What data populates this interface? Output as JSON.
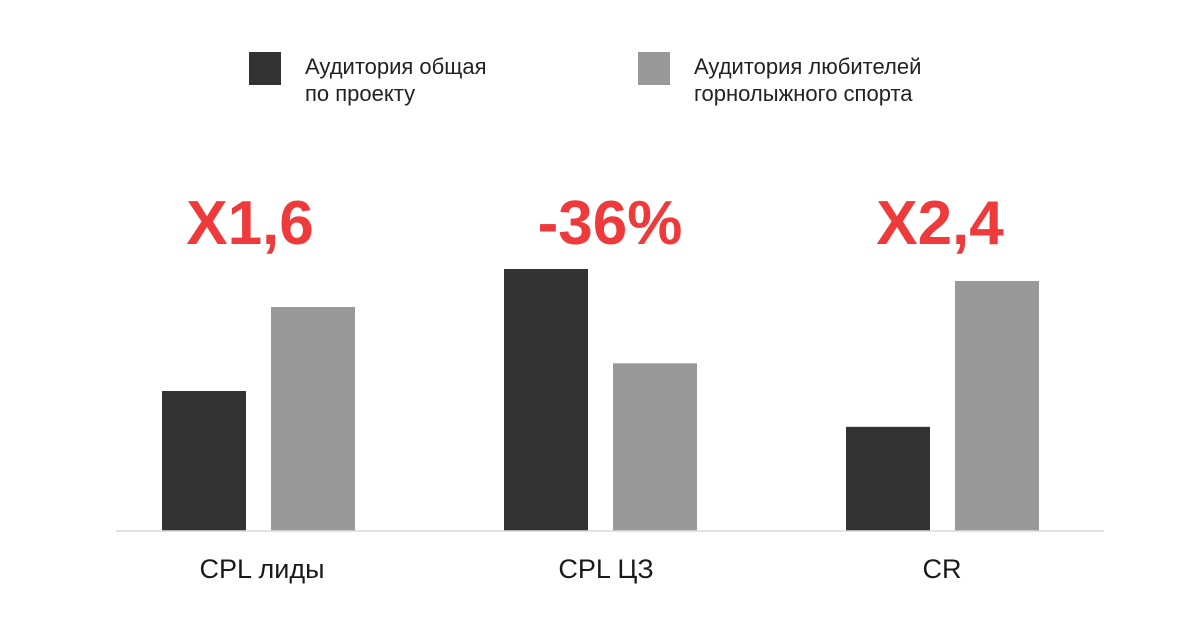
{
  "chart_data": {
    "type": "bar",
    "categories": [
      "CPL лиды",
      "CPL ЦЗ",
      "CR"
    ],
    "series": [
      {
        "name": "Аудитория общая по проекту",
        "legend_lines": [
          "Аудитория общая",
          "по проекту"
        ],
        "color": "#333333",
        "values": [
          1.0,
          1.0,
          1.0
        ]
      },
      {
        "name": "Аудитория любителей горнолыжного спорта",
        "legend_lines": [
          "Аудитория любителей",
          "горнолыжного спорта"
        ],
        "color": "#999999",
        "values": [
          1.6,
          0.64,
          2.4
        ]
      }
    ],
    "annotations": [
      "X1,6",
      "-36%",
      "X2,4"
    ],
    "annotation_color": "#ee3a3a",
    "legend_position": "top",
    "grid": false,
    "axis_color": "#d9d9d9"
  }
}
